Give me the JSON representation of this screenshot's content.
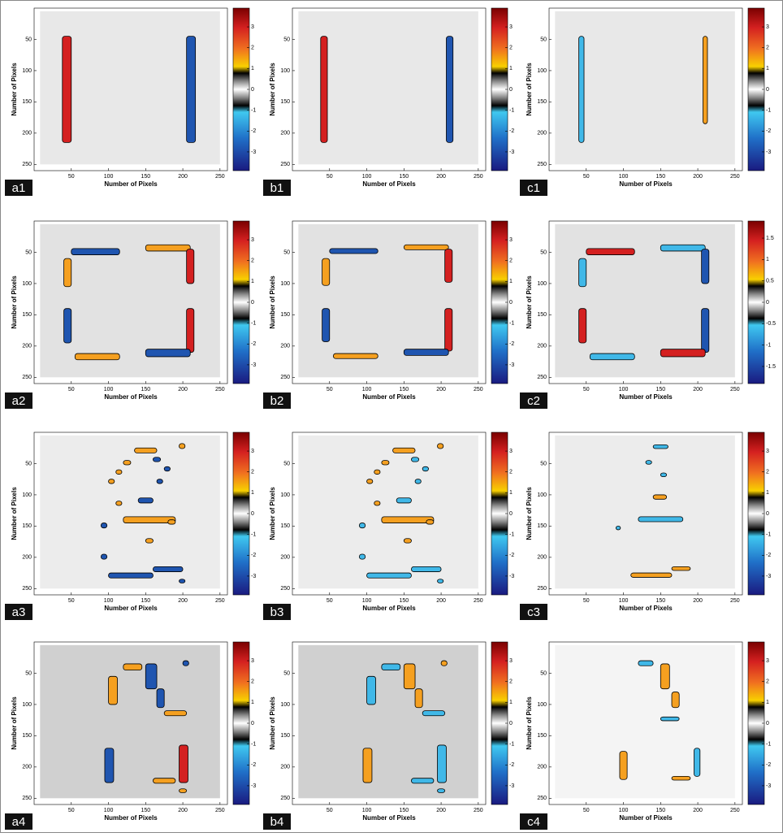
{
  "chart_data": [
    {
      "type": "heatmap",
      "label": "a1",
      "xlabel": "Number of Pixels",
      "ylabel": "Number of Pixels",
      "xlim": [
        0,
        260
      ],
      "ylim": [
        0,
        260
      ],
      "y_reversed": true,
      "xticks": [
        50,
        100,
        150,
        200,
        250
      ],
      "yticks": [
        50,
        100,
        150,
        200,
        250
      ],
      "colorbar": {
        "lim": [
          -3.9,
          3.9
        ],
        "ticks": [
          3,
          2,
          1,
          0,
          -1,
          -2,
          -3
        ]
      }
    },
    {
      "type": "heatmap",
      "label": "b1",
      "xlabel": "Number of Pixels",
      "ylabel": "Number of Pixels",
      "xlim": [
        0,
        260
      ],
      "ylim": [
        0,
        260
      ],
      "y_reversed": true,
      "xticks": [
        50,
        100,
        150,
        200,
        250
      ],
      "yticks": [
        50,
        100,
        150,
        200,
        250
      ],
      "colorbar": {
        "lim": [
          -3.9,
          3.9
        ],
        "ticks": [
          3,
          2,
          1,
          0,
          -1,
          -2,
          -3
        ]
      }
    },
    {
      "type": "heatmap",
      "label": "c1",
      "xlabel": "Number of Pixels",
      "ylabel": "Number of Pixels",
      "xlim": [
        0,
        260
      ],
      "ylim": [
        0,
        260
      ],
      "y_reversed": true,
      "xticks": [
        50,
        100,
        150,
        200,
        250
      ],
      "yticks": [
        50,
        100,
        150,
        200,
        250
      ],
      "colorbar": {
        "lim": [
          -3.9,
          3.9
        ],
        "ticks": [
          3,
          2,
          1,
          0,
          -1,
          -2,
          -3
        ]
      }
    },
    {
      "type": "heatmap",
      "label": "a2",
      "xlabel": "Number of Pixels",
      "ylabel": "Number of Pixels",
      "xlim": [
        0,
        260
      ],
      "ylim": [
        0,
        260
      ],
      "y_reversed": true,
      "xticks": [
        50,
        100,
        150,
        200,
        250
      ],
      "yticks": [
        50,
        100,
        150,
        200,
        250
      ],
      "colorbar": {
        "lim": [
          -3.9,
          3.9
        ],
        "ticks": [
          3,
          2,
          1,
          0,
          -1,
          -2,
          -3
        ]
      }
    },
    {
      "type": "heatmap",
      "label": "b2",
      "xlabel": "Number of Pixels",
      "ylabel": "Number of Pixels",
      "xlim": [
        0,
        260
      ],
      "ylim": [
        0,
        260
      ],
      "y_reversed": true,
      "xticks": [
        50,
        100,
        150,
        200,
        250
      ],
      "yticks": [
        50,
        100,
        150,
        200,
        250
      ],
      "colorbar": {
        "lim": [
          -3.9,
          3.9
        ],
        "ticks": [
          3,
          2,
          1,
          0,
          -1,
          -2,
          -3
        ]
      }
    },
    {
      "type": "heatmap",
      "label": "c2",
      "xlabel": "Number of Pixels",
      "ylabel": "Number of Pixels",
      "xlim": [
        0,
        260
      ],
      "ylim": [
        0,
        260
      ],
      "y_reversed": true,
      "xticks": [
        50,
        100,
        150,
        200,
        250
      ],
      "yticks": [
        50,
        100,
        150,
        200,
        250
      ],
      "colorbar": {
        "lim": [
          -1.9,
          1.9
        ],
        "ticks": [
          1.5,
          1,
          0.5,
          0,
          -0.5,
          -1,
          -1.5
        ]
      }
    },
    {
      "type": "heatmap",
      "label": "a3",
      "xlabel": "Number of Pixels",
      "ylabel": "Number of Pixels",
      "xlim": [
        0,
        260
      ],
      "ylim": [
        0,
        260
      ],
      "y_reversed": true,
      "xticks": [
        50,
        100,
        150,
        200,
        250
      ],
      "yticks": [
        50,
        100,
        150,
        200,
        250
      ],
      "colorbar": {
        "lim": [
          -3.9,
          3.9
        ],
        "ticks": [
          3,
          2,
          1,
          0,
          -1,
          -2,
          -3
        ]
      }
    },
    {
      "type": "heatmap",
      "label": "b3",
      "xlabel": "Number of Pixels",
      "ylabel": "Number of Pixels",
      "xlim": [
        0,
        260
      ],
      "ylim": [
        0,
        260
      ],
      "y_reversed": true,
      "xticks": [
        50,
        100,
        150,
        200,
        250
      ],
      "yticks": [
        50,
        100,
        150,
        200,
        250
      ],
      "colorbar": {
        "lim": [
          -3.9,
          3.9
        ],
        "ticks": [
          3,
          2,
          1,
          0,
          -1,
          -2,
          -3
        ]
      }
    },
    {
      "type": "heatmap",
      "label": "c3",
      "xlabel": "Number of Pixels",
      "ylabel": "Number of Pixels",
      "xlim": [
        0,
        260
      ],
      "ylim": [
        0,
        260
      ],
      "y_reversed": true,
      "xticks": [
        50,
        100,
        150,
        200,
        250
      ],
      "yticks": [
        50,
        100,
        150,
        200,
        250
      ],
      "colorbar": {
        "lim": [
          -3.9,
          3.9
        ],
        "ticks": [
          3,
          2,
          1,
          0,
          -1,
          -2,
          -3
        ]
      }
    },
    {
      "type": "heatmap",
      "label": "a4",
      "xlabel": "Number of Pixels",
      "ylabel": "Number of Pixels",
      "xlim": [
        0,
        260
      ],
      "ylim": [
        0,
        260
      ],
      "y_reversed": true,
      "xticks": [
        50,
        100,
        150,
        200,
        250
      ],
      "yticks": [
        50,
        100,
        150,
        200,
        250
      ],
      "colorbar": {
        "lim": [
          -3.9,
          3.9
        ],
        "ticks": [
          3,
          2,
          1,
          0,
          -1,
          -2,
          -3
        ]
      }
    },
    {
      "type": "heatmap",
      "label": "b4",
      "xlabel": "Number of Pixels",
      "ylabel": "Number of Pixels",
      "xlim": [
        0,
        260
      ],
      "ylim": [
        0,
        260
      ],
      "y_reversed": true,
      "xticks": [
        50,
        100,
        150,
        200,
        250
      ],
      "yticks": [
        50,
        100,
        150,
        200,
        250
      ],
      "colorbar": {
        "lim": [
          -3.9,
          3.9
        ],
        "ticks": [
          3,
          2,
          1,
          0,
          -1,
          -2,
          -3
        ]
      }
    },
    {
      "type": "heatmap",
      "label": "c4",
      "xlabel": "Number of Pixels",
      "ylabel": "Number of Pixels",
      "xlim": [
        0,
        260
      ],
      "ylim": [
        0,
        260
      ],
      "y_reversed": true,
      "xticks": [
        50,
        100,
        150,
        200,
        250
      ],
      "yticks": [
        50,
        100,
        150,
        200,
        250
      ],
      "colorbar": {
        "lim": [
          -3.9,
          3.9
        ],
        "ticks": [
          3,
          2,
          1,
          0,
          -1,
          -2,
          -3
        ]
      }
    }
  ]
}
